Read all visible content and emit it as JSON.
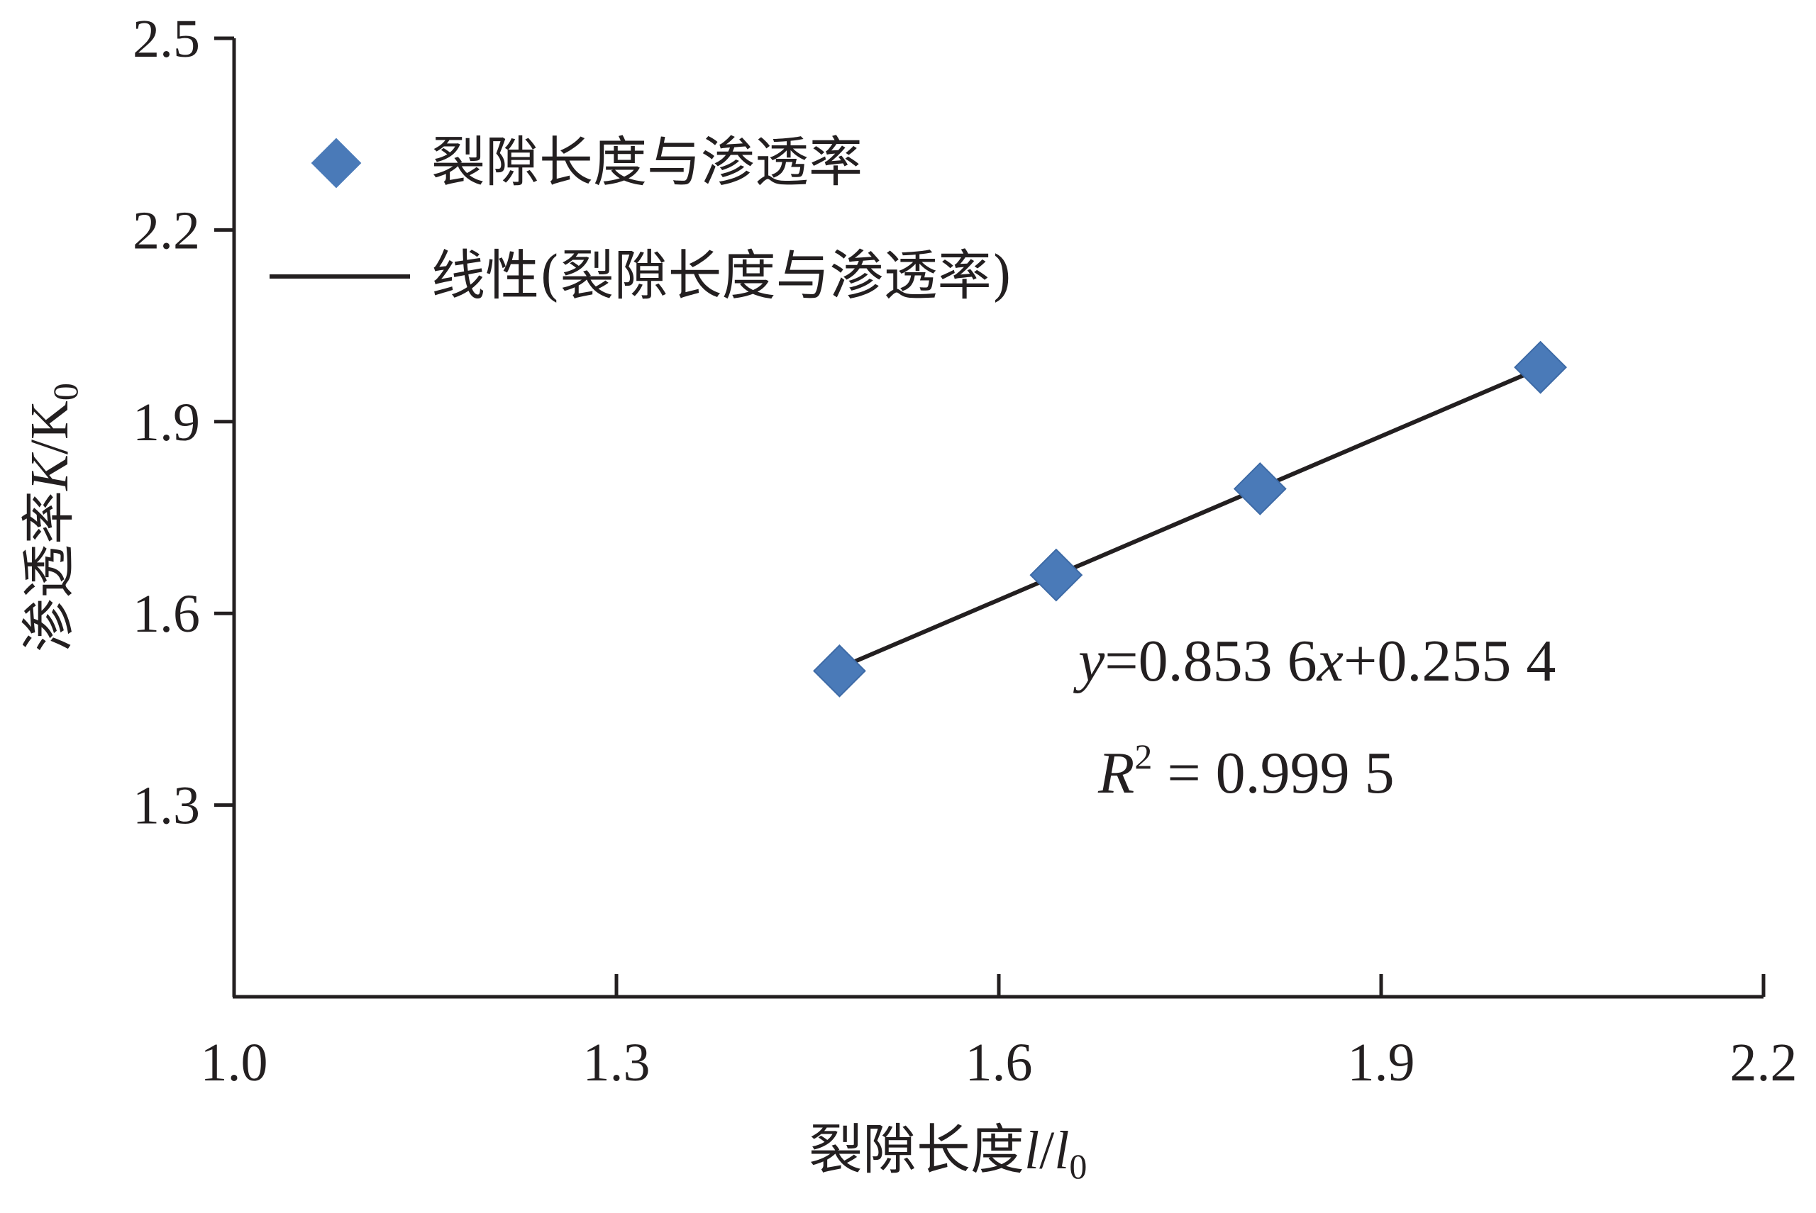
{
  "chart_data": {
    "type": "scatter",
    "xlabel": {
      "prefix": "裂隙长度",
      "var": "l",
      "slash": "/",
      "var0": "l",
      "sub": "0"
    },
    "ylabel": {
      "prefix": "渗透率",
      "var": "K",
      "slash": "/",
      "var0": "K",
      "sub": "0"
    },
    "xlim": [
      1.0,
      2.2
    ],
    "ylim": [
      1.0,
      2.5
    ],
    "x_ticks": [
      "1.0",
      "1.3",
      "1.6",
      "1.9",
      "2.2"
    ],
    "y_ticks": [
      "1.3",
      "1.6",
      "1.9",
      "2.2",
      "2.5"
    ],
    "series": [
      {
        "name": "裂隙长度与渗透率",
        "marker": "diamond",
        "color": "#4a7ab8",
        "x": [
          1.475,
          1.645,
          1.805,
          2.025
        ],
        "y": [
          1.51,
          1.66,
          1.795,
          1.985
        ]
      }
    ],
    "trendline": {
      "name": "线性(裂隙长度与渗透率)",
      "color": "#231f20",
      "slope": 0.8536,
      "intercept": 0.2554,
      "x_range": [
        1.475,
        2.025
      ]
    },
    "annotation": {
      "eq_y": "y",
      "eq_rest1": "=0.853 6",
      "eq_x": "x",
      "eq_rest2": "+0.255 4",
      "r_R": "R",
      "r_sup": "2",
      "r_rest": " = 0.999 5"
    },
    "grid": false,
    "legend_position": "top-left"
  }
}
